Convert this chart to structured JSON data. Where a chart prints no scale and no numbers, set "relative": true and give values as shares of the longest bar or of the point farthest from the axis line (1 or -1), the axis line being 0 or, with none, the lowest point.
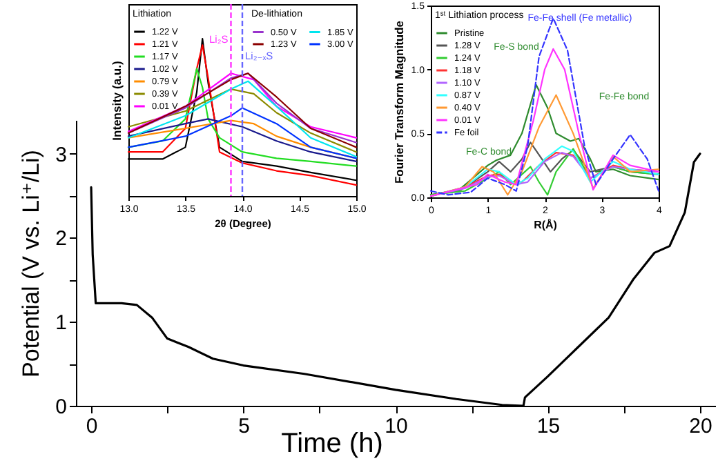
{
  "chart_data": [
    {
      "type": "line",
      "xlabel": "Time (h)",
      "ylabel": "Potential (V vs. Li⁺/Li)",
      "xlim": [
        -0.5,
        20.5
      ],
      "ylim": [
        0,
        3.4
      ],
      "xticks": [
        0,
        {
          "value": 2.5,
          "label": null
        },
        5,
        {
          "value": 7.5,
          "label": null
        },
        10,
        {
          "value": 12.5,
          "label": null
        },
        15,
        {
          "value": 17.5,
          "label": null
        },
        20
      ],
      "yticks": [
        0,
        {
          "value": 0.5,
          "label": null
        },
        1,
        {
          "value": 1.5,
          "label": null
        },
        2,
        {
          "value": 2.5,
          "label": null
        },
        3
      ],
      "grid": false,
      "series": [
        {
          "color": "#000000",
          "x": [
            0,
            0.05,
            0.15,
            1.0,
            1.5,
            2.0,
            2.5,
            3.2,
            4,
            5,
            7,
            10,
            12,
            13.5,
            14.2,
            14.25,
            15,
            16,
            17,
            17.8,
            18.5,
            19,
            19.5,
            19.8,
            20
          ],
          "values": [
            2.6,
            1.8,
            1.22,
            1.22,
            1.2,
            1.05,
            0.8,
            0.7,
            0.56,
            0.48,
            0.38,
            0.19,
            0.08,
            0.01,
            0.0,
            0.1,
            0.35,
            0.7,
            1.05,
            1.5,
            1.82,
            1.9,
            2.3,
            2.9,
            3.0
          ]
        }
      ]
    },
    {
      "type": "line",
      "relative": true,
      "xlabel": "2θ (Degree)",
      "ylabel": "Intensity (a.u.)",
      "xlim": [
        13.0,
        15.0
      ],
      "xticks": [
        {
          "value": 13,
          "label": "13.0"
        },
        {
          "value": 13.5,
          "label": "13.5"
        },
        {
          "value": 14,
          "label": "14.0"
        },
        {
          "value": 14.5,
          "label": "14.5"
        },
        {
          "value": 15,
          "label": "15.0"
        }
      ],
      "legend": "top left",
      "legend_title": "Lithiation",
      "annotations": [
        "De-lithiation"
      ],
      "ref_lines": [
        {
          "axis": "x",
          "value": 13.9,
          "label": "Li₂S",
          "color": "#ff33ff",
          "line_style": "dashed"
        },
        {
          "axis": "x",
          "value": 14.0,
          "label": "Li₂₋ₓS",
          "color": "#6666ff",
          "line_style": "dashed"
        }
      ],
      "series": [
        {
          "name": "1.22 V",
          "color": "#000000",
          "x": [
            13.0,
            13.3,
            13.5,
            13.6,
            13.65,
            13.7,
            13.8,
            14.0,
            14.3,
            14.6,
            15.0
          ],
          "values": [
            0.235,
            0.235,
            0.31,
            0.66,
            1.0,
            0.72,
            0.31,
            0.22,
            0.19,
            0.15,
            0.1
          ]
        },
        {
          "name": "1.21 V",
          "color": "#ff0000",
          "x": [
            13.0,
            13.3,
            13.5,
            13.6,
            13.65,
            13.7,
            13.8,
            14.0,
            14.3,
            14.6,
            15.0
          ],
          "values": [
            0.28,
            0.28,
            0.43,
            0.81,
            0.96,
            0.75,
            0.28,
            0.21,
            0.16,
            0.13,
            0.07
          ]
        },
        {
          "name": "1.17 V",
          "color": "#22dd22",
          "x": [
            13.0,
            13.3,
            13.5,
            13.6,
            13.65,
            13.7,
            13.8,
            14.0,
            14.3,
            14.6,
            15.0
          ],
          "values": [
            0.31,
            0.35,
            0.49,
            0.81,
            0.69,
            0.49,
            0.37,
            0.28,
            0.24,
            0.22,
            0.19
          ]
        },
        {
          "name": "1.02 V",
          "color": "#1a1a8c",
          "x": [
            13.0,
            13.5,
            13.7,
            14.0,
            14.3,
            14.6,
            15.0
          ],
          "values": [
            0.38,
            0.46,
            0.49,
            0.44,
            0.35,
            0.28,
            0.22
          ]
        },
        {
          "name": "0.79 V",
          "color": "#ff8c00",
          "x": [
            13.0,
            13.5,
            13.9,
            14.1,
            14.3,
            14.6,
            15.0
          ],
          "values": [
            0.37,
            0.43,
            0.48,
            0.46,
            0.38,
            0.31,
            0.24
          ]
        },
        {
          "name": "0.39 V",
          "color": "#8b8b00",
          "x": [
            13.0,
            13.5,
            13.9,
            14.1,
            14.3,
            14.6,
            15.0
          ],
          "values": [
            0.44,
            0.54,
            0.68,
            0.65,
            0.53,
            0.4,
            0.28
          ]
        },
        {
          "name": "0.01 V",
          "color": "#ff00ff",
          "x": [
            13.0,
            13.5,
            13.9,
            14.1,
            14.3,
            14.6,
            15.0
          ],
          "values": [
            0.41,
            0.57,
            0.78,
            0.74,
            0.57,
            0.44,
            0.37
          ]
        },
        {
          "name": "0.50 V",
          "color": "#9933cc",
          "x": [
            13.0,
            13.5,
            13.9,
            14.05,
            14.3,
            14.6,
            15.0
          ],
          "values": [
            0.4,
            0.56,
            0.75,
            0.78,
            0.59,
            0.43,
            0.34
          ]
        },
        {
          "name": "1.23 V",
          "color": "#8b0000",
          "x": [
            13.0,
            13.5,
            13.9,
            14.05,
            14.3,
            14.6,
            15.0
          ],
          "values": [
            0.4,
            0.57,
            0.74,
            0.78,
            0.63,
            0.43,
            0.31
          ]
        },
        {
          "name": "1.85 V",
          "color": "#00e5ee",
          "x": [
            13.0,
            13.5,
            13.9,
            14.05,
            14.3,
            14.6,
            15.0
          ],
          "values": [
            0.37,
            0.51,
            0.68,
            0.73,
            0.57,
            0.37,
            0.25
          ]
        },
        {
          "name": "3.00 V",
          "color": "#0033ff",
          "x": [
            13.0,
            13.5,
            13.9,
            14.0,
            14.3,
            14.6,
            15.0
          ],
          "values": [
            0.31,
            0.38,
            0.51,
            0.56,
            0.46,
            0.31,
            0.24
          ]
        }
      ]
    },
    {
      "type": "line",
      "xlabel": "R(Å)",
      "ylabel": "Fourier Transform Magnitude",
      "xlim": [
        0,
        4
      ],
      "ylim": [
        0,
        1.5
      ],
      "xticks": [
        0,
        1,
        2,
        3,
        4
      ],
      "yticks": [
        {
          "value": 0,
          "label": "0.0"
        },
        {
          "value": 0.5,
          "label": "0.5"
        },
        {
          "value": 1,
          "label": "1.0"
        },
        {
          "value": 1.5,
          "label": "1.5"
        }
      ],
      "legend": "top left",
      "legend_title": "1ˢᵗ Lithiation process",
      "annotations": [
        "Fe-Fe shell (Fe metallic)",
        "Fe-S bond",
        "Fe-Fe bond",
        "Fe-C bond"
      ],
      "series": [
        {
          "name": "Pristine",
          "color": "#2e8b2e",
          "x": [
            0,
            0.5,
            1,
            1.15,
            1.4,
            1.6,
            1.85,
            2.05,
            2.2,
            2.45,
            2.6,
            2.8,
            2.9,
            3.2,
            3.5,
            4
          ],
          "values": [
            0.02,
            0.06,
            0.25,
            0.29,
            0.33,
            0.5,
            0.88,
            0.7,
            0.5,
            0.44,
            0.46,
            0.3,
            0.2,
            0.22,
            0.17,
            0.14
          ]
        },
        {
          "name": "1.28 V",
          "color": "#555555",
          "x": [
            0,
            0.5,
            1,
            1.2,
            1.4,
            1.6,
            1.75,
            1.95,
            2.1,
            2.3,
            2.5,
            2.8,
            3.2,
            3.5,
            4
          ],
          "values": [
            0.02,
            0.05,
            0.2,
            0.28,
            0.2,
            0.3,
            0.43,
            0.3,
            0.2,
            0.3,
            0.37,
            0.2,
            0.24,
            0.2,
            0.18
          ]
        },
        {
          "name": "1.24 V",
          "color": "#33cc33",
          "x": [
            0,
            0.6,
            1,
            1.2,
            1.4,
            1.6,
            1.75,
            1.9,
            2.05,
            2.2,
            2.5,
            2.8,
            3.2,
            3.5,
            4
          ],
          "values": [
            0.02,
            0.05,
            0.15,
            0.2,
            0.1,
            0.18,
            0.24,
            0.12,
            0.02,
            0.2,
            0.38,
            0.15,
            0.24,
            0.2,
            0.18
          ]
        },
        {
          "name": "1.18 V",
          "color": "#ff3333",
          "x": [
            0,
            0.6,
            1,
            1.2,
            1.4,
            1.6,
            1.9,
            2.2,
            2.5,
            2.8,
            3.2,
            3.5,
            4
          ],
          "values": [
            0.01,
            0.08,
            0.17,
            0.18,
            0.12,
            0.12,
            0.25,
            0.35,
            0.33,
            0.15,
            0.25,
            0.22,
            0.2
          ]
        },
        {
          "name": "1.10 V",
          "color": "#b266ff",
          "x": [
            0,
            0.6,
            1,
            1.2,
            1.5,
            1.7,
            2.0,
            2.3,
            2.5,
            2.8,
            3.2,
            3.5,
            4
          ],
          "values": [
            0.01,
            0.07,
            0.16,
            0.17,
            0.1,
            0.12,
            0.28,
            0.35,
            0.32,
            0.15,
            0.24,
            0.22,
            0.2
          ]
        },
        {
          "name": "0.87 V",
          "color": "#33ffff",
          "x": [
            0,
            0.6,
            1,
            1.2,
            1.5,
            1.7,
            2.0,
            2.3,
            2.5,
            2.8,
            3.2,
            3.5,
            4
          ],
          "values": [
            0.01,
            0.08,
            0.22,
            0.2,
            0.1,
            0.15,
            0.3,
            0.4,
            0.36,
            0.12,
            0.28,
            0.22,
            0.18
          ]
        },
        {
          "name": "0.40 V",
          "color": "#ff9933",
          "x": [
            0,
            0.6,
            0.9,
            1.1,
            1.35,
            1.6,
            1.9,
            2.2,
            2.5,
            2.85,
            3.2,
            3.5,
            4
          ],
          "values": [
            0.01,
            0.08,
            0.24,
            0.2,
            0.02,
            0.2,
            0.55,
            0.8,
            0.5,
            0.07,
            0.32,
            0.2,
            0.22
          ]
        },
        {
          "name": "0.01 V",
          "color": "#ff33ff",
          "x": [
            0,
            0.8,
            1,
            1.3,
            1.5,
            1.8,
            2.0,
            2.15,
            2.35,
            2.6,
            2.85,
            3.2,
            3.5,
            4
          ],
          "values": [
            0.01,
            0.1,
            0.18,
            0.12,
            0.1,
            0.6,
            1.0,
            1.16,
            1.0,
            0.5,
            0.06,
            0.33,
            0.25,
            0.2
          ]
        },
        {
          "name": "Fe foil",
          "color": "#3333ff",
          "line_style": "dashed",
          "x": [
            0,
            0.3,
            0.7,
            1.0,
            1.3,
            1.5,
            1.7,
            1.9,
            2.15,
            2.4,
            2.7,
            2.9,
            3.2,
            3.5,
            3.8,
            4
          ],
          "values": [
            0.05,
            0.02,
            0.04,
            0.15,
            0.1,
            0.05,
            0.4,
            1.1,
            1.4,
            1.15,
            0.4,
            0.1,
            0.3,
            0.49,
            0.3,
            0.05
          ]
        }
      ]
    }
  ]
}
